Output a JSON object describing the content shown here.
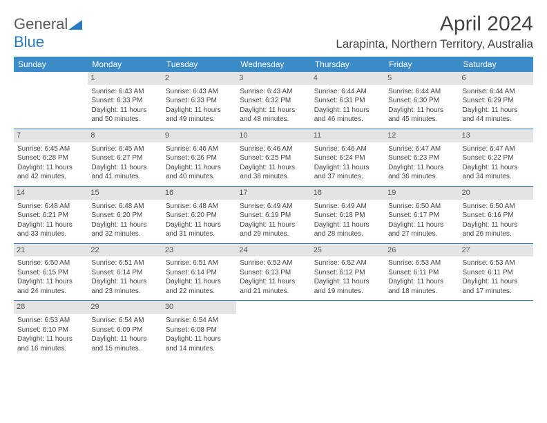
{
  "logo": {
    "part1": "General",
    "part2": "Blue"
  },
  "title": "April 2024",
  "location": "Larapinta, Northern Territory, Australia",
  "weekdays": [
    "Sunday",
    "Monday",
    "Tuesday",
    "Wednesday",
    "Thursday",
    "Friday",
    "Saturday"
  ],
  "colors": {
    "header_bg": "#3b8bc9",
    "row_divider": "#2a6fa8",
    "daynum_bg": "#e4e4e4",
    "logo_blue": "#2a7bbf"
  },
  "typography": {
    "title_fontsize": 30,
    "location_fontsize": 17,
    "weekday_fontsize": 12,
    "cell_fontsize": 10
  },
  "weeks": [
    [
      null,
      {
        "n": "1",
        "sr": "6:43 AM",
        "ss": "6:33 PM",
        "dl": "11 hours and 50 minutes."
      },
      {
        "n": "2",
        "sr": "6:43 AM",
        "ss": "6:33 PM",
        "dl": "11 hours and 49 minutes."
      },
      {
        "n": "3",
        "sr": "6:43 AM",
        "ss": "6:32 PM",
        "dl": "11 hours and 48 minutes."
      },
      {
        "n": "4",
        "sr": "6:44 AM",
        "ss": "6:31 PM",
        "dl": "11 hours and 46 minutes."
      },
      {
        "n": "5",
        "sr": "6:44 AM",
        "ss": "6:30 PM",
        "dl": "11 hours and 45 minutes."
      },
      {
        "n": "6",
        "sr": "6:44 AM",
        "ss": "6:29 PM",
        "dl": "11 hours and 44 minutes."
      }
    ],
    [
      {
        "n": "7",
        "sr": "6:45 AM",
        "ss": "6:28 PM",
        "dl": "11 hours and 42 minutes."
      },
      {
        "n": "8",
        "sr": "6:45 AM",
        "ss": "6:27 PM",
        "dl": "11 hours and 41 minutes."
      },
      {
        "n": "9",
        "sr": "6:46 AM",
        "ss": "6:26 PM",
        "dl": "11 hours and 40 minutes."
      },
      {
        "n": "10",
        "sr": "6:46 AM",
        "ss": "6:25 PM",
        "dl": "11 hours and 38 minutes."
      },
      {
        "n": "11",
        "sr": "6:46 AM",
        "ss": "6:24 PM",
        "dl": "11 hours and 37 minutes."
      },
      {
        "n": "12",
        "sr": "6:47 AM",
        "ss": "6:23 PM",
        "dl": "11 hours and 36 minutes."
      },
      {
        "n": "13",
        "sr": "6:47 AM",
        "ss": "6:22 PM",
        "dl": "11 hours and 34 minutes."
      }
    ],
    [
      {
        "n": "14",
        "sr": "6:48 AM",
        "ss": "6:21 PM",
        "dl": "11 hours and 33 minutes."
      },
      {
        "n": "15",
        "sr": "6:48 AM",
        "ss": "6:20 PM",
        "dl": "11 hours and 32 minutes."
      },
      {
        "n": "16",
        "sr": "6:48 AM",
        "ss": "6:20 PM",
        "dl": "11 hours and 31 minutes."
      },
      {
        "n": "17",
        "sr": "6:49 AM",
        "ss": "6:19 PM",
        "dl": "11 hours and 29 minutes."
      },
      {
        "n": "18",
        "sr": "6:49 AM",
        "ss": "6:18 PM",
        "dl": "11 hours and 28 minutes."
      },
      {
        "n": "19",
        "sr": "6:50 AM",
        "ss": "6:17 PM",
        "dl": "11 hours and 27 minutes."
      },
      {
        "n": "20",
        "sr": "6:50 AM",
        "ss": "6:16 PM",
        "dl": "11 hours and 26 minutes."
      }
    ],
    [
      {
        "n": "21",
        "sr": "6:50 AM",
        "ss": "6:15 PM",
        "dl": "11 hours and 24 minutes."
      },
      {
        "n": "22",
        "sr": "6:51 AM",
        "ss": "6:14 PM",
        "dl": "11 hours and 23 minutes."
      },
      {
        "n": "23",
        "sr": "6:51 AM",
        "ss": "6:14 PM",
        "dl": "11 hours and 22 minutes."
      },
      {
        "n": "24",
        "sr": "6:52 AM",
        "ss": "6:13 PM",
        "dl": "11 hours and 21 minutes."
      },
      {
        "n": "25",
        "sr": "6:52 AM",
        "ss": "6:12 PM",
        "dl": "11 hours and 19 minutes."
      },
      {
        "n": "26",
        "sr": "6:53 AM",
        "ss": "6:11 PM",
        "dl": "11 hours and 18 minutes."
      },
      {
        "n": "27",
        "sr": "6:53 AM",
        "ss": "6:11 PM",
        "dl": "11 hours and 17 minutes."
      }
    ],
    [
      {
        "n": "28",
        "sr": "6:53 AM",
        "ss": "6:10 PM",
        "dl": "11 hours and 16 minutes."
      },
      {
        "n": "29",
        "sr": "6:54 AM",
        "ss": "6:09 PM",
        "dl": "11 hours and 15 minutes."
      },
      {
        "n": "30",
        "sr": "6:54 AM",
        "ss": "6:08 PM",
        "dl": "11 hours and 14 minutes."
      },
      null,
      null,
      null,
      null
    ]
  ],
  "labels": {
    "sunrise": "Sunrise: ",
    "sunset": "Sunset: ",
    "daylight": "Daylight: "
  }
}
